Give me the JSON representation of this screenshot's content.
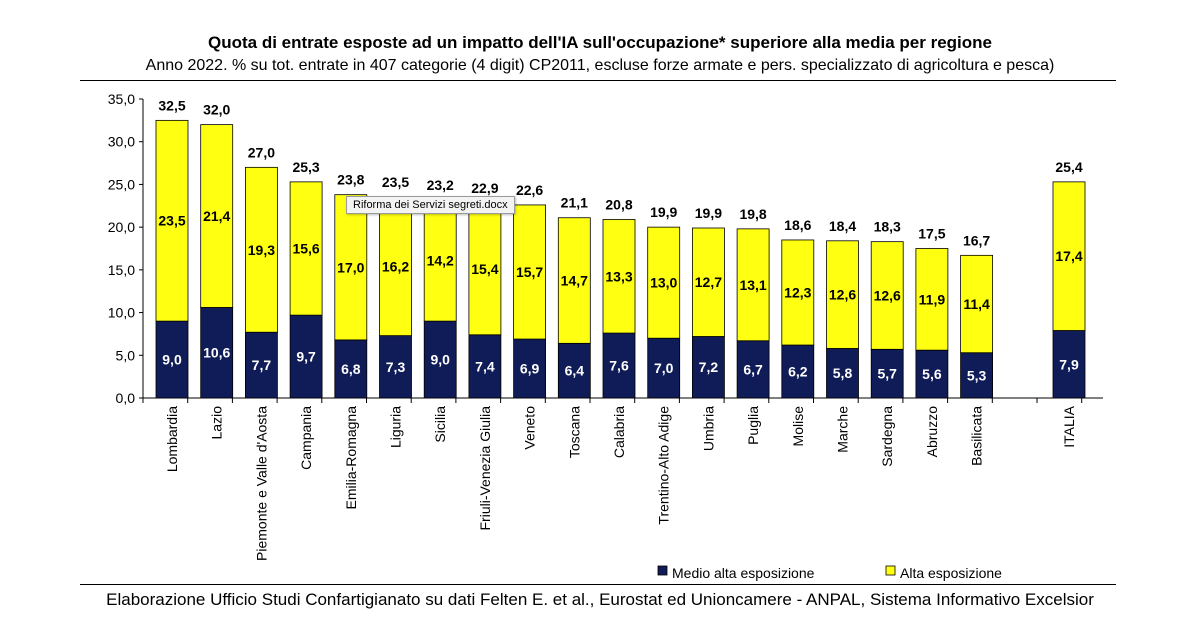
{
  "title": "Quota di entrate esposte ad un impatto dell'IA sull'occupazione* superiore alla media per regione",
  "subtitle": "Anno 2022. % su tot. entrate in 407 categorie (4 digit) CP2011, escluse forze armate e pers. specializzato di agricoltura e pesca)",
  "source": "Elaborazione Ufficio Studi Confartigianato su dati Felten E. et al., Eurostat ed Unioncamere - ANPAL, Sistema Informativo Excelsior",
  "tooltip": "Riforma dei Servizi segreti.docx",
  "colors": {
    "medio": "#0f1c57",
    "alta": "#ffff11"
  },
  "chart_data": {
    "type": "bar",
    "stacked": true,
    "categories": [
      "Lombardia",
      "Lazio",
      "Piemonte e Valle d'Aosta",
      "Campania",
      "Emilia-Romagna",
      "Liguria",
      "Sicilia",
      "Friuli-Venezia Giulia",
      "Veneto",
      "Toscana",
      "Calabria",
      "Trentino-Alto Adige",
      "Umbria",
      "Puglia",
      "Molise",
      "Marche",
      "Sardegna",
      "Abruzzo",
      "Basilicata",
      "ITALIA"
    ],
    "series": [
      {
        "name": "Medio alta esposizione",
        "values": [
          9.0,
          10.6,
          7.7,
          9.7,
          6.8,
          7.3,
          9.0,
          7.4,
          6.9,
          6.4,
          7.6,
          7.0,
          7.2,
          6.7,
          6.2,
          5.8,
          5.7,
          5.6,
          5.3,
          7.9
        ]
      },
      {
        "name": "Alta esposizione",
        "values": [
          23.5,
          21.4,
          19.3,
          15.6,
          17.0,
          16.2,
          14.2,
          15.4,
          15.7,
          14.7,
          13.3,
          13.0,
          12.7,
          13.1,
          12.3,
          12.6,
          12.6,
          11.9,
          11.4,
          17.4
        ]
      }
    ],
    "totals": [
      32.5,
      32.0,
      27.0,
      25.3,
      23.8,
      23.5,
      23.2,
      22.9,
      22.6,
      21.1,
      20.8,
      19.9,
      19.9,
      19.8,
      18.6,
      18.4,
      18.3,
      17.5,
      16.7,
      25.4
    ],
    "ylim": [
      0,
      35
    ],
    "yticks": [
      "0,0",
      "5,0",
      "10,0",
      "15,0",
      "20,0",
      "25,0",
      "30,0",
      "35,0"
    ],
    "legend_position": "bottom-right"
  }
}
